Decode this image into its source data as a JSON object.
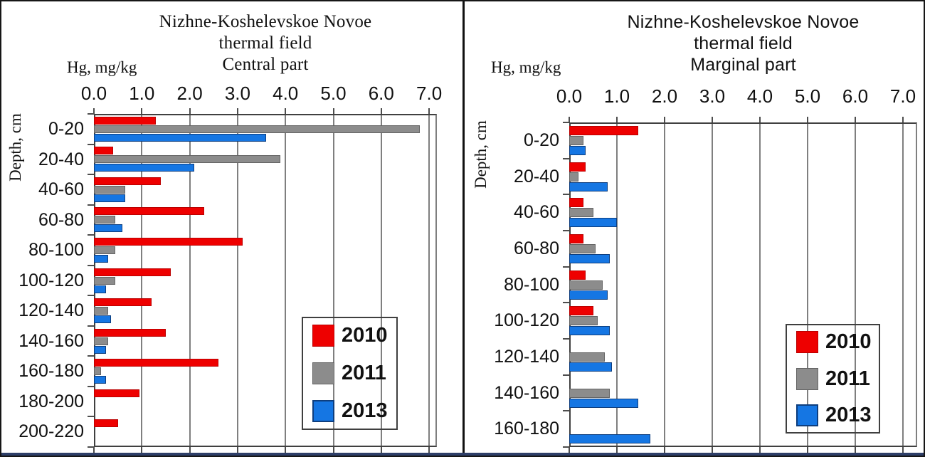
{
  "figure": {
    "kind": "two-panel horizontal grouped bar chart",
    "colors": {
      "year_2010": "#ee0000",
      "year_2011": "#8c8c8c",
      "year_2013": "#1576e3",
      "gridline": "#7f7f7f",
      "axis": "#404040"
    }
  },
  "chart_data": [
    {
      "type": "bar",
      "orientation": "horizontal",
      "title_lines": [
        "Nizhne-Koshelevskoe Novoe",
        "thermal field",
        "Central part"
      ],
      "axis_unit_label": "Hg, mg/kg",
      "ylabel": "Depth, cm",
      "xlim": [
        0.0,
        7.0
      ],
      "x_ticks": [
        "0.0",
        "1.0",
        "2.0",
        "3.0",
        "4.0",
        "5.0",
        "6.0",
        "7.0"
      ],
      "grid": true,
      "legend_position": "inside-right",
      "categories": [
        "0-20",
        "20-40",
        "40-60",
        "60-80",
        "80-100",
        "100-120",
        "120-140",
        "140-160",
        "160-180",
        "180-200",
        "200-220"
      ],
      "series": [
        {
          "name": "2010",
          "color": "#ee0000",
          "border": "#bb0000",
          "values": [
            1.3,
            0.4,
            1.4,
            2.3,
            3.1,
            1.6,
            1.2,
            1.5,
            2.6,
            0.95,
            0.5
          ]
        },
        {
          "name": "2011",
          "color": "#8c8c8c",
          "border": "#636363",
          "values": [
            6.8,
            3.9,
            0.65,
            0.45,
            0.45,
            0.45,
            0.3,
            0.3,
            0.15,
            0,
            0
          ]
        },
        {
          "name": "2013",
          "color": "#1576e3",
          "border": "#0e3e7e",
          "values": [
            3.6,
            2.1,
            0.65,
            0.6,
            0.3,
            0.25,
            0.35,
            0.25,
            0.25,
            0,
            0
          ]
        }
      ]
    },
    {
      "type": "bar",
      "orientation": "horizontal",
      "title_lines": [
        "Nizhne-Koshelevskoe Novoe",
        "thermal field",
        "Marginal part"
      ],
      "axis_unit_label": "Hg, mg/kg",
      "ylabel": "Depth, cm",
      "xlim": [
        0.0,
        7.0
      ],
      "x_ticks": [
        "0.0",
        "1.0",
        "2.0",
        "3.0",
        "4.0",
        "5.0",
        "6.0",
        "7.0"
      ],
      "grid": true,
      "legend_position": "inside-right",
      "categories": [
        "0-20",
        "20-40",
        "40-60",
        "60-80",
        "80-100",
        "100-120",
        "120-140",
        "140-160",
        "160-180"
      ],
      "series": [
        {
          "name": "2010",
          "color": "#ee0000",
          "border": "#bb0000",
          "values": [
            1.45,
            0.35,
            0.3,
            0.3,
            0.35,
            0.5,
            0,
            0,
            0
          ]
        },
        {
          "name": "2011",
          "color": "#8c8c8c",
          "border": "#636363",
          "values": [
            0.3,
            0.2,
            0.5,
            0.55,
            0.7,
            0.6,
            0.75,
            0.85,
            0
          ]
        },
        {
          "name": "2013",
          "color": "#1576e3",
          "border": "#0e3e7e",
          "values": [
            0.35,
            0.8,
            1.0,
            0.85,
            0.8,
            0.85,
            0.9,
            1.45,
            1.7
          ]
        }
      ]
    }
  ]
}
